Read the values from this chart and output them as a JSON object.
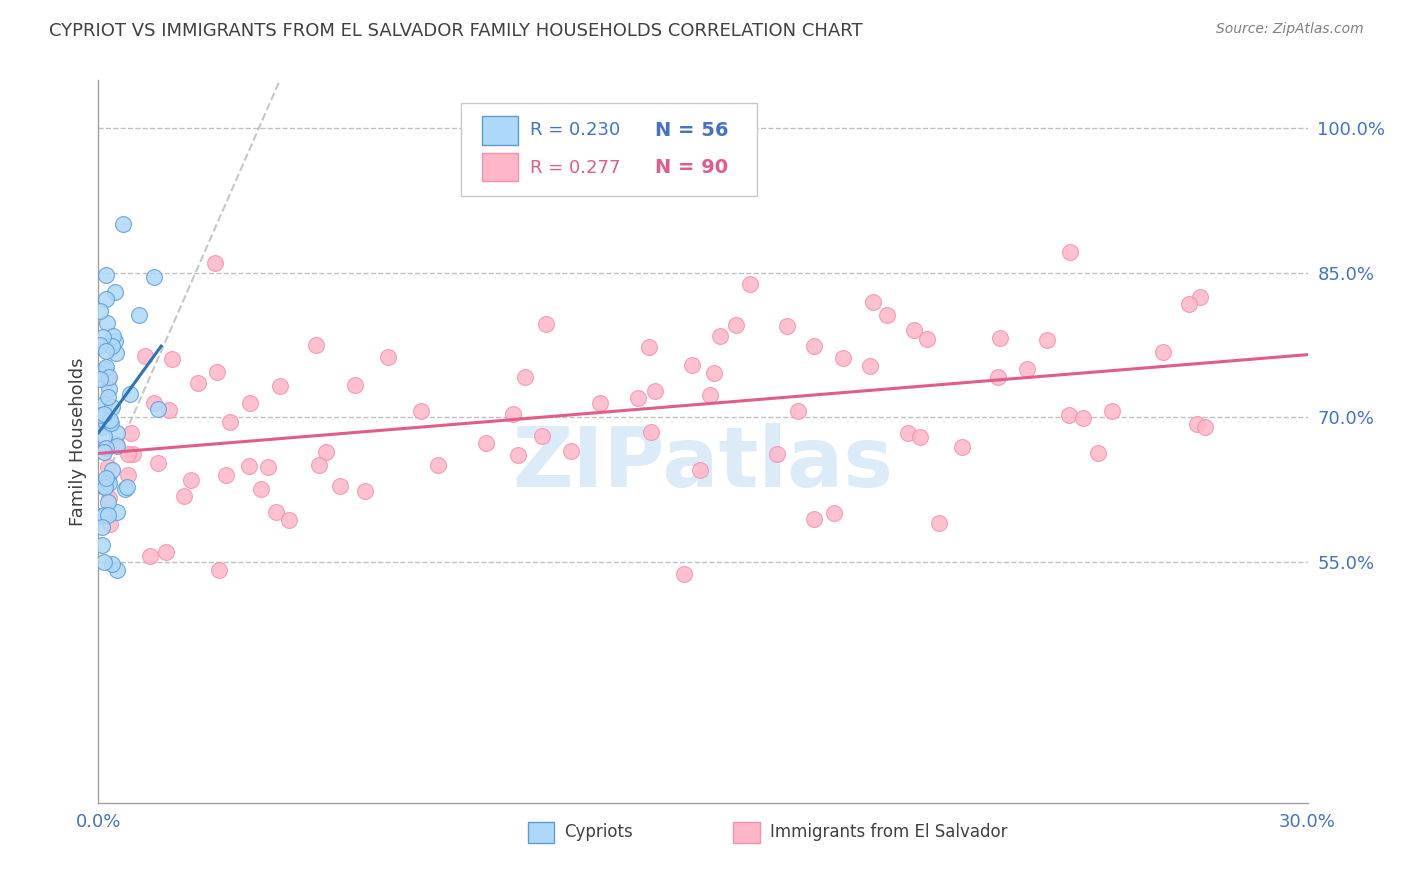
{
  "title": "CYPRIOT VS IMMIGRANTS FROM EL SALVADOR FAMILY HOUSEHOLDS CORRELATION CHART",
  "source": "Source: ZipAtlas.com",
  "ylabel": "Family Households",
  "xmin": 0.0,
  "xmax": 30.0,
  "ymin": 30.0,
  "ymax": 105.0,
  "ytick_vals": [
    55.0,
    70.0,
    85.0,
    100.0
  ],
  "ytick_labels": [
    "55.0%",
    "70.0%",
    "85.0%",
    "100.0%"
  ],
  "xtick_vals": [
    0.0,
    30.0
  ],
  "xtick_labels": [
    "0.0%",
    "30.0%"
  ],
  "legend_r1": "R = 0.230",
  "legend_n1": "N = 56",
  "legend_r2": "R = 0.277",
  "legend_n2": "N = 90",
  "color_blue_fill": "#aed8f7",
  "color_blue_edge": "#5b9bd5",
  "color_pink_fill": "#ffb6c8",
  "color_pink_edge": "#f48fb1",
  "color_trendline_blue": "#2e75b6",
  "color_trendline_pink": "#e05c8a",
  "color_diag": "#c0c0c0",
  "color_grid": "#c0c0c0",
  "color_axis_text": "#4472C4",
  "color_title": "#404040",
  "color_source": "#808080",
  "color_watermark": "#cce3f5",
  "watermark": "ZIPatlas",
  "cypriot_seed": 123,
  "salvador_seed": 456
}
